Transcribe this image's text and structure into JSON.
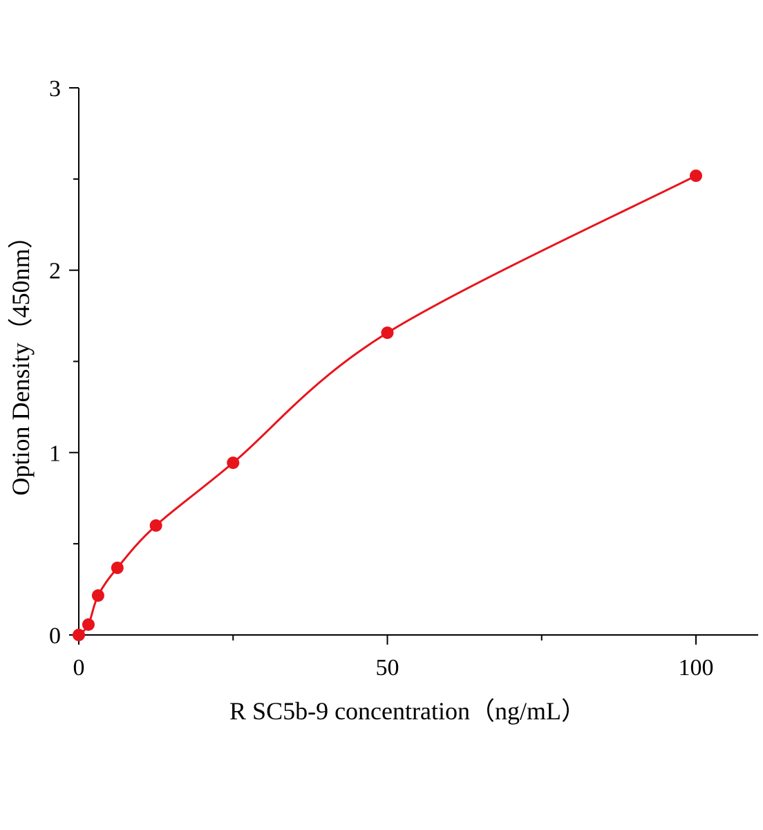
{
  "chart_data": {
    "type": "scatter",
    "title": "",
    "xlabel": "R SC5b-9  concentration（ng/mL）",
    "ylabel": "Option Density（450nm）",
    "xlim": [
      0,
      110
    ],
    "ylim": [
      0,
      3
    ],
    "xticks": [
      0,
      50,
      100
    ],
    "xtick_labels": [
      "0",
      "50",
      "100"
    ],
    "xminor": [
      25,
      75
    ],
    "yticks": [
      0,
      1,
      2,
      3
    ],
    "ytick_labels": [
      "0",
      "1",
      "2",
      "3"
    ],
    "yminor": [
      0.5,
      1.5,
      2.5
    ],
    "grid": false,
    "series": [
      {
        "x": [
          0,
          1.5625,
          3.125,
          6.25,
          12.5,
          25,
          50,
          100
        ],
        "y": [
          0,
          0.057,
          0.216,
          0.368,
          0.6,
          0.944,
          1.657,
          2.518
        ],
        "color": "#e8141c",
        "fit_curve": true
      }
    ]
  }
}
